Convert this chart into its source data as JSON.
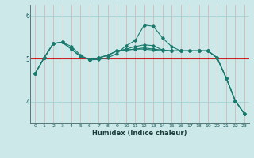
{
  "xlabel": "Humidex (Indice chaleur)",
  "bg_color": "#cce8e8",
  "vgrid_color": "#d4b8b8",
  "hgrid_color": "#aad4d4",
  "line_color": "#1a7a6e",
  "red_line_color": "#cc2222",
  "xlim": [
    -0.5,
    23.5
  ],
  "ylim": [
    3.5,
    6.25
  ],
  "yticks": [
    4,
    5,
    6
  ],
  "xticks": [
    0,
    1,
    2,
    3,
    4,
    5,
    6,
    7,
    8,
    9,
    10,
    11,
    12,
    13,
    14,
    15,
    16,
    17,
    18,
    19,
    20,
    21,
    22,
    23
  ],
  "series": [
    [
      4.65,
      5.02,
      5.35,
      5.38,
      5.28,
      5.08,
      4.97,
      4.98,
      5.02,
      5.12,
      5.3,
      5.42,
      5.78,
      5.75,
      5.48,
      5.28,
      5.18,
      5.18,
      5.18,
      5.18,
      5.02,
      4.55,
      4.02,
      3.72
    ],
    [
      4.65,
      5.02,
      5.35,
      5.38,
      5.22,
      5.05,
      4.98,
      5.02,
      5.08,
      5.18,
      5.22,
      5.28,
      5.32,
      5.3,
      5.2,
      5.18,
      5.18,
      5.18,
      5.18,
      5.18,
      5.02,
      4.55,
      4.02,
      3.72
    ],
    [
      4.65,
      5.02,
      5.35,
      5.38,
      5.22,
      5.05,
      4.98,
      5.02,
      5.08,
      5.18,
      5.2,
      5.22,
      5.22,
      5.2,
      5.18,
      5.18,
      5.18,
      5.18,
      5.18,
      5.18,
      5.02,
      4.55,
      4.02,
      3.72
    ],
    [
      4.65,
      5.02,
      5.35,
      5.38,
      5.22,
      5.05,
      4.98,
      5.02,
      5.08,
      5.18,
      5.2,
      5.22,
      5.25,
      5.22,
      5.2,
      5.18,
      5.18,
      5.18,
      5.18,
      5.18,
      5.02,
      4.55,
      4.02,
      3.72
    ]
  ],
  "red_line_y": 5.0
}
